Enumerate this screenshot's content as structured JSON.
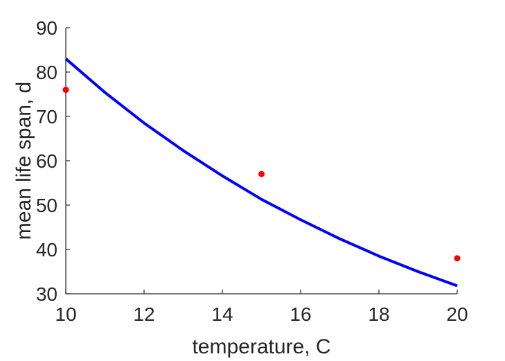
{
  "chart_data": {
    "type": "scatter",
    "title": "",
    "xlabel": "temperature, C",
    "ylabel": "mean life span, d",
    "xlim": [
      10,
      20
    ],
    "ylim": [
      30,
      90
    ],
    "xticks": [
      10,
      12,
      14,
      16,
      18,
      20
    ],
    "yticks": [
      30,
      40,
      50,
      60,
      70,
      80,
      90
    ],
    "grid": false,
    "legend": "none",
    "series": [
      {
        "kind": "points",
        "color": "#ff0000",
        "x": [
          10,
          15,
          20
        ],
        "y": [
          76,
          57,
          38
        ]
      },
      {
        "kind": "line",
        "color": "#0000ff",
        "x": [
          10,
          11,
          12,
          13,
          14,
          15,
          16,
          17,
          18,
          19,
          20
        ],
        "y": [
          83.0,
          75.4,
          68.5,
          62.3,
          56.6,
          51.3,
          46.7,
          42.4,
          38.5,
          35.0,
          31.8
        ]
      }
    ]
  }
}
